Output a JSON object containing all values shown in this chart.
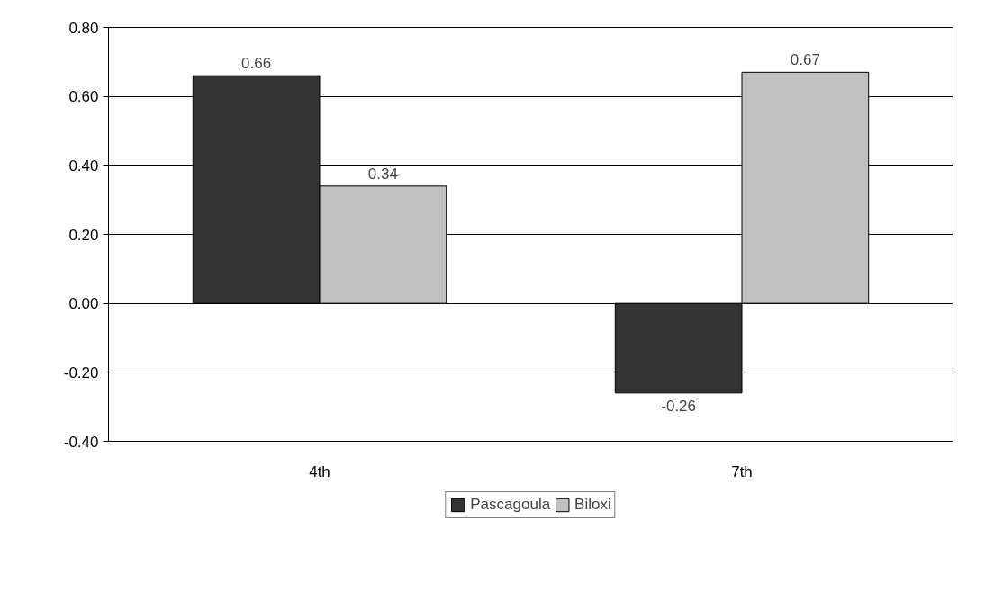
{
  "chart_data": {
    "type": "bar",
    "categories": [
      "4th",
      "7th"
    ],
    "series": [
      {
        "name": "Pascagoula",
        "color": "#333333",
        "values": [
          0.66,
          -0.26
        ]
      },
      {
        "name": "Biloxi",
        "color": "#c0c0c0",
        "values": [
          0.34,
          0.67
        ]
      }
    ],
    "ylim": [
      -0.4,
      0.8
    ],
    "yticks": [
      {
        "value": -0.4,
        "label": "-0.40"
      },
      {
        "value": -0.2,
        "label": "-0.20"
      },
      {
        "value": 0,
        "label": "0.00"
      },
      {
        "value": 0.2,
        "label": "0.20"
      },
      {
        "value": 0.4,
        "label": "0.40"
      },
      {
        "value": 0.6,
        "label": "0.60"
      },
      {
        "value": 0.8,
        "label": "0.80"
      }
    ],
    "grid": "y",
    "legend": "bottom",
    "data_labels": true
  }
}
